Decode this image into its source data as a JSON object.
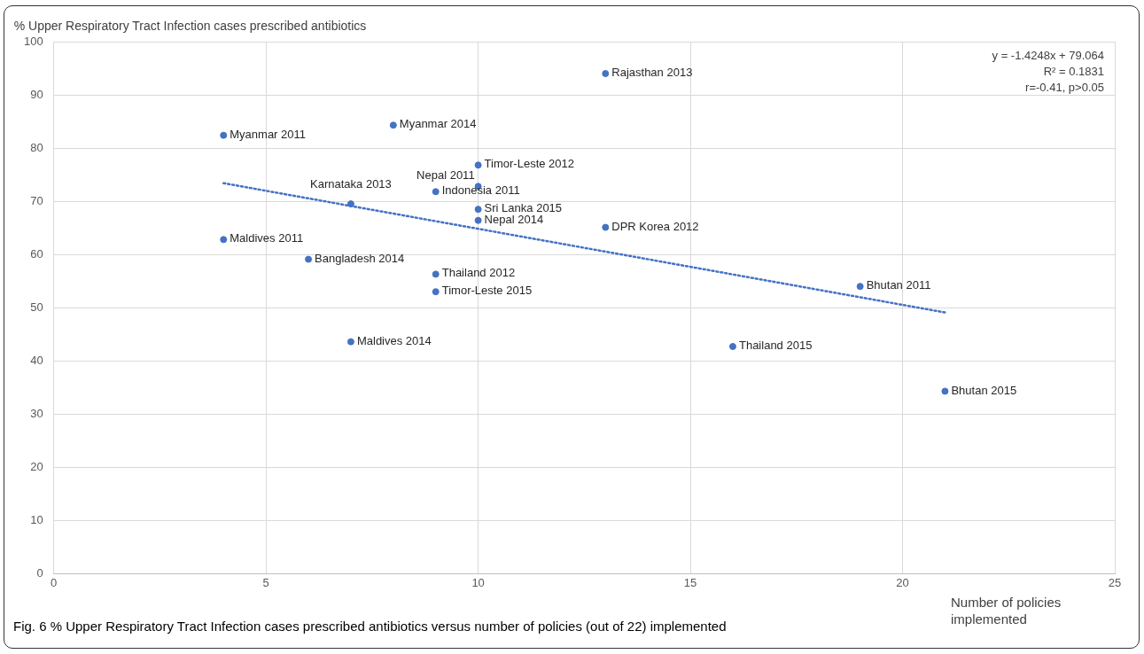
{
  "chart_data": {
    "type": "scatter",
    "title": "Fig. 6 % Upper Respiratory Tract Infection cases prescribed antibiotics versus number of policies (out of 22) implemented",
    "ylabel": "% Upper Respiratory Tract Infection cases prescribed antibiotics",
    "xlabel": "Number of policies implemented",
    "xlim": [
      0,
      25
    ],
    "xticks": [
      0,
      5,
      10,
      15,
      20,
      25
    ],
    "ylim": [
      0,
      100
    ],
    "yticks": [
      0,
      10,
      20,
      30,
      40,
      50,
      60,
      70,
      80,
      90,
      100
    ],
    "grid": true,
    "series": [
      {
        "color": "#4472c4",
        "marker": "circle",
        "x": [
          4,
          4,
          7,
          7,
          6,
          8,
          9,
          9,
          9,
          10,
          10,
          10,
          10,
          13,
          13,
          16,
          19,
          21
        ],
        "values": [
          82.4,
          62.8,
          69.5,
          43.6,
          59.1,
          84.3,
          71.8,
          56.3,
          53.0,
          76.8,
          72.8,
          68.5,
          66.4,
          94.0,
          65.1,
          42.7,
          54.0,
          34.3
        ]
      },
      {
        "type": "line",
        "color": "#4472c4",
        "line_style": "dotted",
        "marker": "none",
        "x": [
          4,
          21
        ],
        "values": [
          73.4,
          49.1
        ]
      }
    ],
    "annotations": [
      "y = -1.4248x + 79.064\nR² = 0.1831\nr=-0.41, p>0.05",
      {
        "text": "Myanmar 2011",
        "x": 4,
        "y": 82.4
      },
      {
        "text": "Maldives 2011",
        "x": 4,
        "y": 62.8
      },
      {
        "text": "Karnataka 2013",
        "x": 7,
        "y": 69.5
      },
      {
        "text": "Maldives 2014",
        "x": 7,
        "y": 43.6
      },
      {
        "text": "Bangladesh 2014",
        "x": 6,
        "y": 59.1
      },
      {
        "text": "Myanmar 2014",
        "x": 8,
        "y": 84.3
      },
      {
        "text": "Indonesia 2011",
        "x": 9,
        "y": 71.8
      },
      {
        "text": "Thailand 2012",
        "x": 9,
        "y": 56.3
      },
      {
        "text": "Timor-Leste 2015",
        "x": 9,
        "y": 53.0
      },
      {
        "text": "Timor-Leste 2012",
        "x": 10,
        "y": 76.8
      },
      {
        "text": "Nepal 2011",
        "x": 10,
        "y": 72.8
      },
      {
        "text": "Sri Lanka 2015",
        "x": 10,
        "y": 68.5
      },
      {
        "text": "Nepal 2014",
        "x": 10,
        "y": 66.4
      },
      {
        "text": "Rajasthan 2013",
        "x": 13,
        "y": 94.0
      },
      {
        "text": "DPR Korea 2012",
        "x": 13,
        "y": 65.1
      },
      {
        "text": "Thailand 2015",
        "x": 16,
        "y": 42.7
      },
      {
        "text": "Bhutan 2011",
        "x": 19,
        "y": 54.0
      },
      {
        "text": "Bhutan 2015",
        "x": 21,
        "y": 34.3
      }
    ]
  }
}
